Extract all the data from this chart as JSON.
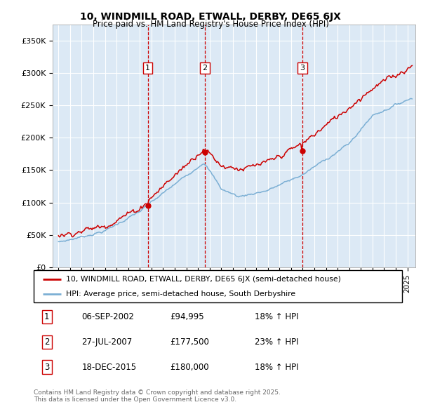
{
  "title": "10, WINDMILL ROAD, ETWALL, DERBY, DE65 6JX",
  "subtitle": "Price paid vs. HM Land Registry's House Price Index (HPI)",
  "legend_line1": "10, WINDMILL ROAD, ETWALL, DERBY, DE65 6JX (semi-detached house)",
  "legend_line2": "HPI: Average price, semi-detached house, South Derbyshire",
  "footnote": "Contains HM Land Registry data © Crown copyright and database right 2025.\nThis data is licensed under the Open Government Licence v3.0.",
  "sale_color": "#cc0000",
  "hpi_color": "#7bafd4",
  "vline_color": "#cc0000",
  "sale_points": [
    {
      "date_num": 2002.68,
      "price": 94995,
      "label": "1"
    },
    {
      "date_num": 2007.57,
      "price": 177500,
      "label": "2"
    },
    {
      "date_num": 2015.96,
      "price": 180000,
      "label": "3"
    }
  ],
  "vline_dates": [
    2002.68,
    2007.57,
    2015.96
  ],
  "table_rows": [
    [
      "1",
      "06-SEP-2002",
      "£94,995",
      "18% ↑ HPI"
    ],
    [
      "2",
      "27-JUL-2007",
      "£177,500",
      "23% ↑ HPI"
    ],
    [
      "3",
      "18-DEC-2015",
      "£180,000",
      "18% ↑ HPI"
    ]
  ],
  "ylim": [
    0,
    375000
  ],
  "yticks": [
    0,
    50000,
    100000,
    150000,
    200000,
    250000,
    300000,
    350000
  ],
  "ytick_labels": [
    "£0",
    "£50K",
    "£100K",
    "£150K",
    "£200K",
    "£250K",
    "£300K",
    "£350K"
  ],
  "xlim_start": 1994.5,
  "xlim_end": 2025.7,
  "background_color": "#dce9f5"
}
